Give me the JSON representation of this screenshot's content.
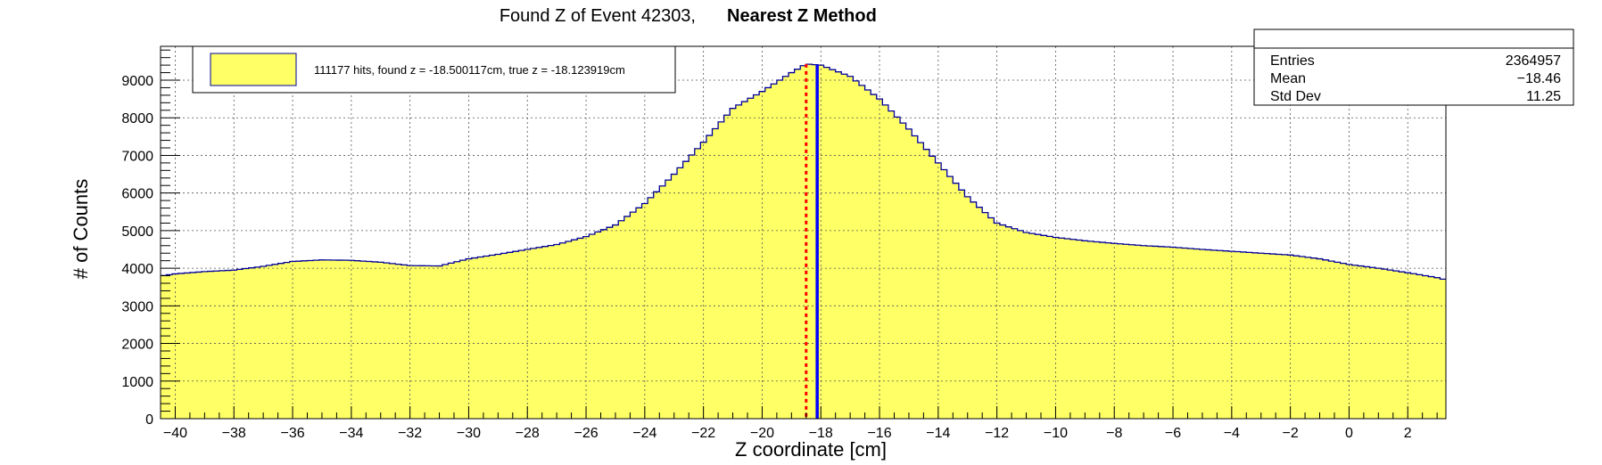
{
  "chart_data": {
    "type": "histogram",
    "title_main": "Found Z of Event 42303,",
    "title_bold": "Nearest Z Method",
    "xlabel": "Z coordinate [cm]",
    "ylabel": "# of Counts",
    "xlim": [
      -40.5,
      3.3
    ],
    "ylim": [
      0,
      9900
    ],
    "x_ticks": [
      -40,
      -38,
      -36,
      -34,
      -32,
      -30,
      -28,
      -26,
      -24,
      -22,
      -20,
      -18,
      -16,
      -14,
      -12,
      -10,
      -8,
      -6,
      -4,
      -2,
      0,
      2
    ],
    "y_ticks": [
      0,
      1000,
      2000,
      3000,
      4000,
      5000,
      6000,
      7000,
      8000,
      9000
    ],
    "grid": true,
    "fill_color": "#ffff66",
    "line_color": "#000099",
    "profile": [
      [
        -40.5,
        1950
      ],
      [
        -40.45,
        3800
      ],
      [
        -40.0,
        3850
      ],
      [
        -39.0,
        3910
      ],
      [
        -38.0,
        3950
      ],
      [
        -37.0,
        4050
      ],
      [
        -36.0,
        4180
      ],
      [
        -35.0,
        4220
      ],
      [
        -34.0,
        4210
      ],
      [
        -33.0,
        4160
      ],
      [
        -32.0,
        4070
      ],
      [
        -31.0,
        4060
      ],
      [
        -30.0,
        4250
      ],
      [
        -29.0,
        4370
      ],
      [
        -28.0,
        4500
      ],
      [
        -27.0,
        4630
      ],
      [
        -26.0,
        4840
      ],
      [
        -25.0,
        5150
      ],
      [
        -24.0,
        5720
      ],
      [
        -23.0,
        6500
      ],
      [
        -22.0,
        7350
      ],
      [
        -21.0,
        8250
      ],
      [
        -20.0,
        8700
      ],
      [
        -19.0,
        9200
      ],
      [
        -18.5,
        9430
      ],
      [
        -18.0,
        9400
      ],
      [
        -17.0,
        9100
      ],
      [
        -16.0,
        8500
      ],
      [
        -15.0,
        7700
      ],
      [
        -14.0,
        6800
      ],
      [
        -13.0,
        5900
      ],
      [
        -12.0,
        5200
      ],
      [
        -11.0,
        4950
      ],
      [
        -10.0,
        4820
      ],
      [
        -9.0,
        4730
      ],
      [
        -8.0,
        4660
      ],
      [
        -7.0,
        4600
      ],
      [
        -6.0,
        4560
      ],
      [
        -5.0,
        4500
      ],
      [
        -4.0,
        4450
      ],
      [
        -3.0,
        4400
      ],
      [
        -2.0,
        4350
      ],
      [
        -1.0,
        4250
      ],
      [
        0.0,
        4100
      ],
      [
        1.0,
        4000
      ],
      [
        2.0,
        3880
      ],
      [
        3.0,
        3750
      ],
      [
        3.25,
        3700
      ],
      [
        3.3,
        1850
      ]
    ],
    "lines": [
      {
        "label": "found z",
        "x": -18.500117,
        "color": "#ff0000",
        "style": "dotted"
      },
      {
        "label": "true z",
        "x": -18.123919,
        "color": "#0000ff",
        "style": "solid"
      }
    ],
    "legend": {
      "entry": "111177 hits, found z = -18.500117cm, true z = -18.123919cm",
      "placement": "top-left"
    },
    "stats": {
      "placement": "top-right",
      "rows": [
        {
          "label": "Entries",
          "value": "2364957"
        },
        {
          "label": "Mean",
          "value": "−18.46"
        },
        {
          "label": "Std Dev",
          "value": "11.25"
        }
      ]
    }
  }
}
